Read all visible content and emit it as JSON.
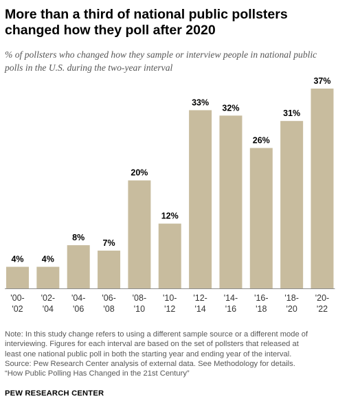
{
  "header": {
    "title": "More than a third of national public pollsters changed how they poll after 2020",
    "subtitle": "% of pollsters who changed how they sample or interview people in national public polls in the U.S. during the two-year interval"
  },
  "colors": {
    "bar": "#c8bc9e",
    "value_label": "#000000",
    "tick_label": "#333333",
    "baseline": "#8c8c8c"
  },
  "chart_data": {
    "type": "bar",
    "title": "More than a third of national public pollsters changed how they poll after 2020",
    "xlabel": "",
    "ylabel": "",
    "ylim": [
      0,
      37
    ],
    "grid": false,
    "legend": "none",
    "categories": [
      [
        "'00-",
        "'02"
      ],
      [
        "'02-",
        "'04"
      ],
      [
        "'04-",
        "'06"
      ],
      [
        "'06-",
        "'08"
      ],
      [
        "'08-",
        "'10"
      ],
      [
        "'10-",
        "'12"
      ],
      [
        "'12-",
        "'14"
      ],
      [
        "'14-",
        "'16"
      ],
      [
        "'16-",
        "'18"
      ],
      [
        "'18-",
        "'20"
      ],
      [
        "'20-",
        "'22"
      ]
    ],
    "values": [
      4,
      4,
      8,
      7,
      20,
      12,
      33,
      32,
      26,
      31,
      37
    ],
    "value_labels": [
      "4%",
      "4%",
      "8%",
      "7%",
      "20%",
      "12%",
      "33%",
      "32%",
      "26%",
      "31%",
      "37%"
    ]
  },
  "notes": [
    "Note: In this study change refers to using a different sample source or a different mode of",
    "interviewing. Figures for each interval are based on the set of pollsters that released at",
    "least one national public poll in both the starting year and ending year of the interval.",
    "Source: Pew Research Center analysis of external data. See Methodology for details.",
    "“How Public Polling Has Changed in the 21st Century”"
  ],
  "brand": "PEW RESEARCH CENTER"
}
